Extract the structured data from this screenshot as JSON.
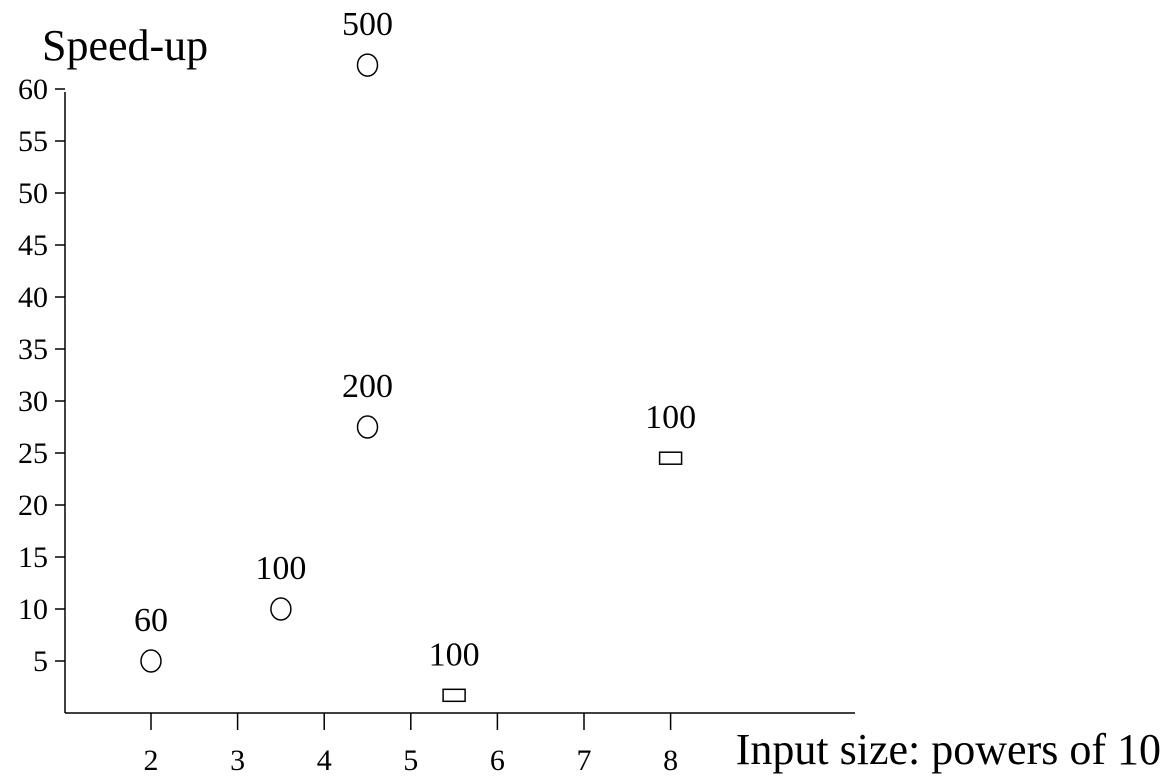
{
  "chart_data": {
    "type": "scatter",
    "title": "",
    "xlabel": "Input size: powers of 10",
    "ylabel": "Speed-up",
    "xlim": [
      1,
      10.3
    ],
    "ylim": [
      0,
      63
    ],
    "x_ticks": [
      "2",
      "3",
      "4",
      "5",
      "6",
      "7",
      "8"
    ],
    "y_ticks": [
      "5",
      "10",
      "15",
      "20",
      "25",
      "30",
      "35",
      "40",
      "45",
      "50",
      "55",
      "60"
    ],
    "grid": false,
    "legend": "none",
    "series": [
      {
        "marker": "circle",
        "points": [
          {
            "x": 2,
            "y": 5,
            "label": "60"
          },
          {
            "x": 3.5,
            "y": 10,
            "label": "100"
          },
          {
            "x": 4.5,
            "y": 27.5,
            "label": "200"
          },
          {
            "x": 4.5,
            "y": 62.3,
            "label": "500"
          }
        ]
      },
      {
        "marker": "rectangle",
        "points": [
          {
            "x": 5.5,
            "y": 1.7,
            "label": "100"
          },
          {
            "x": 8,
            "y": 24.5,
            "label": "100"
          }
        ]
      }
    ]
  }
}
